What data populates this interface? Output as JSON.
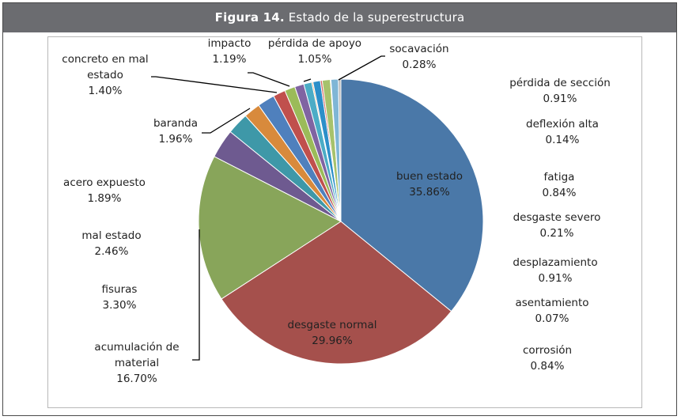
{
  "figure": {
    "caption_label": "Figura 14.",
    "caption_text": "Estado de la superestructura"
  },
  "chart_data": {
    "type": "pie",
    "title": "",
    "slices": [
      {
        "label": "buen estado",
        "value": 35.86,
        "value_text": "35.86%",
        "color": "#4A78A8"
      },
      {
        "label": "desgaste normal",
        "value": 29.96,
        "value_text": "29.96%",
        "color": "#A5504C"
      },
      {
        "label": "acumulación de material",
        "value": 16.7,
        "value_text": "16.70%",
        "color": "#88A55A"
      },
      {
        "label": "fisuras",
        "value": 3.3,
        "value_text": "3.30%",
        "color": "#6E5A90"
      },
      {
        "label": "mal estado",
        "value": 2.46,
        "value_text": "2.46%",
        "color": "#3E98A8"
      },
      {
        "label": "acero expuesto",
        "value": 1.89,
        "value_text": "1.89%",
        "color": "#D88A3C"
      },
      {
        "label": "baranda",
        "value": 1.96,
        "value_text": "1.96%",
        "color": "#4F80BD"
      },
      {
        "label": "concreto en mal estado",
        "value": 1.4,
        "value_text": "1.40%",
        "color": "#C0504D"
      },
      {
        "label": "impacto",
        "value": 1.19,
        "value_text": "1.19%",
        "color": "#9BBB59"
      },
      {
        "label": "pérdida de apoyo",
        "value": 1.05,
        "value_text": "1.05%",
        "color": "#8064A2"
      },
      {
        "label": "pérdida de sección",
        "value": 0.91,
        "value_text": "0.91%",
        "color": "#4BACC6"
      },
      {
        "label": "deflexión alta",
        "value": 0.14,
        "value_text": "0.14%",
        "color": "#F79646"
      },
      {
        "label": "fatiga",
        "value": 0.84,
        "value_text": "0.84%",
        "color": "#2C8FC9"
      },
      {
        "label": "desgaste severo",
        "value": 0.21,
        "value_text": "0.21%",
        "color": "#D55F5B"
      },
      {
        "label": "desplazamiento",
        "value": 0.91,
        "value_text": "0.91%",
        "color": "#A7C26C"
      },
      {
        "label": "asentamiento",
        "value": 0.07,
        "value_text": "0.07%",
        "color": "#9A86B8"
      },
      {
        "label": "corrosión",
        "value": 0.84,
        "value_text": "0.84%",
        "color": "#7FB6D6"
      },
      {
        "label": "socavación",
        "value": 0.28,
        "value_text": "0.28%",
        "color": "#B9B9B9"
      }
    ]
  }
}
